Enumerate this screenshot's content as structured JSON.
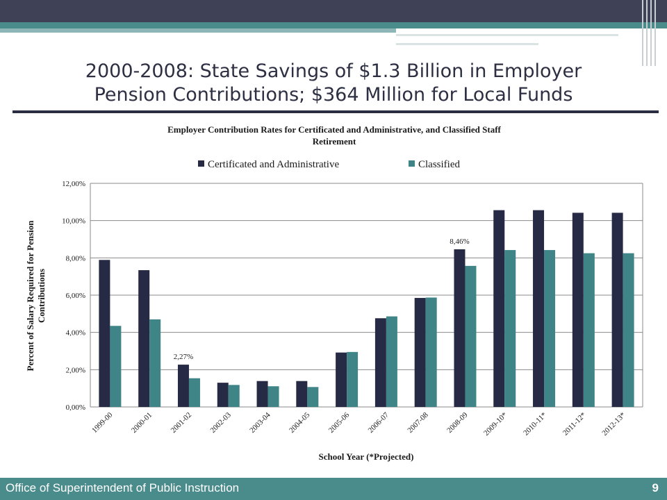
{
  "slide": {
    "title_line1": "2000-2008: State Savings of $1.3 Billion in Employer",
    "title_line2": "Pension Contributions; $364 Million for Local Funds",
    "footer_text": "Office of Superintendent of Public Instruction",
    "page_number": "9"
  },
  "colors": {
    "header_bar": "#3f4257",
    "accent": "#4a8b8c",
    "series_1": "#272a45",
    "series_2": "#3f8588"
  },
  "chart_data": {
    "type": "bar",
    "title_line1": "Employer  Contribution Rates for Certificated and Administrative, and Classified Staff",
    "title_line2": "Retirement",
    "xlabel": "School Year  (*Projected)",
    "ylabel_line1": "Percent of Salary Required for Pension",
    "ylabel_line2": "Contributions",
    "ylim": [
      0,
      0.12
    ],
    "yticks": [
      0,
      0.02,
      0.04,
      0.06,
      0.08,
      0.1,
      0.12
    ],
    "ytick_labels": [
      "0,00%",
      "2,00%",
      "4,00%",
      "6,00%",
      "8,00%",
      "10,00%",
      "12,00%"
    ],
    "grid": "horizontal",
    "legend_position": "top",
    "categories": [
      "1999-00",
      "2000-01",
      "2001-02",
      "2002-03",
      "2003-04",
      "2004-05",
      "2005-06",
      "2006-07",
      "2007-08",
      "2008-09",
      "2009-10*",
      "2010-11*",
      "2011-12*",
      "2012-13*"
    ],
    "series": [
      {
        "name": "Certificated and Administrative",
        "values": [
          0.0789,
          0.0734,
          0.0227,
          0.013,
          0.0139,
          0.0139,
          0.0292,
          0.0476,
          0.0585,
          0.0846,
          0.1056,
          0.1056,
          0.1042,
          0.1042
        ]
      },
      {
        "name": "Classified",
        "values": [
          0.0435,
          0.047,
          0.0154,
          0.0118,
          0.0111,
          0.0107,
          0.0295,
          0.0486,
          0.0587,
          0.0757,
          0.0842,
          0.0842,
          0.0825,
          0.0825
        ]
      }
    ],
    "annotations": [
      {
        "category_index": 2,
        "series_index": 0,
        "text": "2,27%"
      },
      {
        "category_index": 9,
        "series_index": 0,
        "text": "8,46%"
      }
    ]
  }
}
